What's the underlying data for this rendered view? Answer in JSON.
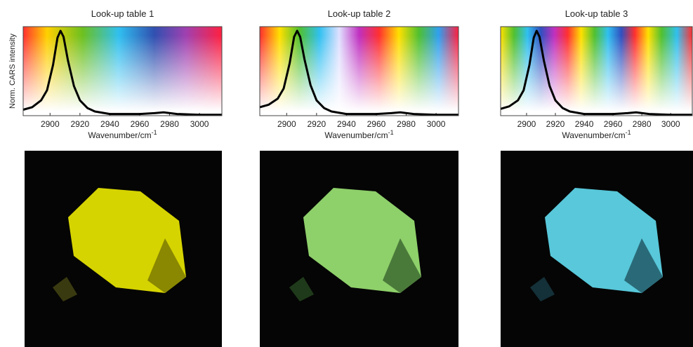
{
  "chart_data": [
    {
      "type": "line",
      "title": "Look-up table 1",
      "y_label": "Norm. CARS intensity",
      "x_label": "Wavenumber/cm",
      "x_label_sup": "-1",
      "x": [
        2882,
        2888,
        2894,
        2898,
        2902,
        2905,
        2907,
        2909,
        2912,
        2916,
        2920,
        2925,
        2930,
        2940,
        2950,
        2960,
        2970,
        2976,
        2985,
        3000,
        3015
      ],
      "series": [
        {
          "color": "#000000",
          "values": [
            0.07,
            0.1,
            0.18,
            0.3,
            0.6,
            0.92,
            1.0,
            0.93,
            0.65,
            0.35,
            0.18,
            0.09,
            0.05,
            0.02,
            0.02,
            0.02,
            0.03,
            0.04,
            0.02,
            0.01,
            0.01
          ]
        }
      ],
      "xlim": [
        2882,
        3015
      ],
      "ylim": [
        0,
        1.05
      ],
      "xticks": [
        2900,
        2920,
        2940,
        2960,
        2980,
        3000
      ]
    },
    {
      "type": "line",
      "title": "Look-up table 2",
      "x_label": "Wavenumber/cm",
      "x_label_sup": "-1",
      "x": [
        2882,
        2888,
        2894,
        2898,
        2902,
        2905,
        2907,
        2909,
        2912,
        2916,
        2920,
        2925,
        2930,
        2940,
        2950,
        2960,
        2970,
        2976,
        2985,
        3000,
        3015
      ],
      "series": [
        {
          "color": "#000000",
          "values": [
            0.1,
            0.13,
            0.2,
            0.32,
            0.62,
            0.93,
            1.0,
            0.93,
            0.66,
            0.36,
            0.18,
            0.09,
            0.05,
            0.02,
            0.02,
            0.02,
            0.03,
            0.04,
            0.02,
            0.01,
            0.01
          ]
        }
      ],
      "xlim": [
        2882,
        3015
      ],
      "ylim": [
        0,
        1.05
      ],
      "xticks": [
        2900,
        2920,
        2940,
        2960,
        2980,
        3000
      ]
    },
    {
      "type": "line",
      "title": "Look-up table 3",
      "x_label": "Wavenumber/cm",
      "x_label_sup": "-1",
      "x": [
        2882,
        2888,
        2894,
        2898,
        2902,
        2905,
        2907,
        2909,
        2912,
        2916,
        2920,
        2925,
        2930,
        2940,
        2950,
        2960,
        2970,
        2976,
        2985,
        3000,
        3015
      ],
      "series": [
        {
          "color": "#000000",
          "values": [
            0.08,
            0.11,
            0.18,
            0.3,
            0.6,
            0.92,
            1.0,
            0.93,
            0.65,
            0.35,
            0.18,
            0.09,
            0.05,
            0.02,
            0.02,
            0.02,
            0.03,
            0.04,
            0.02,
            0.01,
            0.01
          ]
        }
      ],
      "xlim": [
        2882,
        3015
      ],
      "ylim": [
        0,
        1.05
      ],
      "xticks": [
        2900,
        2920,
        2940,
        2960,
        2980,
        3000
      ]
    }
  ]
}
